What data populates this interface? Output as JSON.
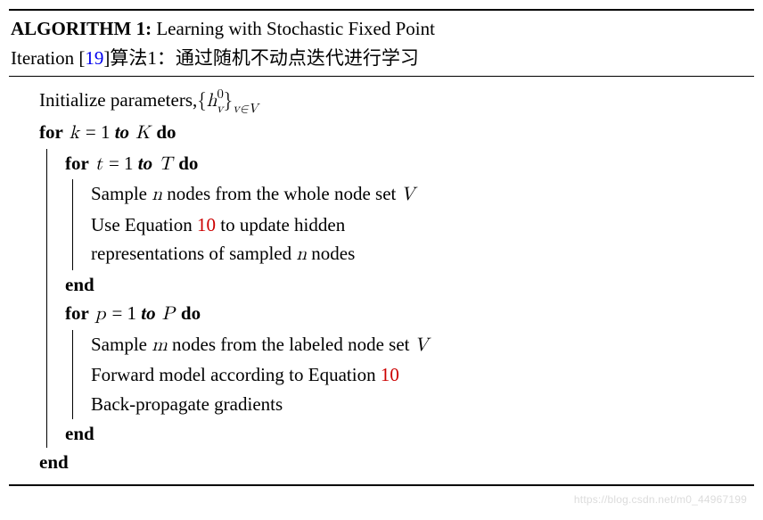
{
  "title": {
    "algorithm_label": "ALGORITHM 1:",
    "en_part1": " Learning with Stochastic Fixed Point",
    "en_part2": "Iteration [",
    "ref_num": "19",
    "en_part3": "]",
    "cn": "算法1：通过随机不动点迭代进行学习"
  },
  "body": {
    "init_a": "Initialize parameters,",
    "init_math_open": "{",
    "init_math_h": "h",
    "init_math_sup": "0",
    "init_math_sub": "v",
    "init_math_close": "}",
    "init_math_subset": "v∈V",
    "for_k_a": "for",
    "for_k_b": " k ",
    "for_k_c": "= 1 ",
    "for_k_d": "to",
    "for_k_e": " K ",
    "for_k_f": "do",
    "for_t_a": "for",
    "for_t_b": " t ",
    "for_t_c": "= 1 ",
    "for_t_d": "to",
    "for_t_e": " T ",
    "for_t_f": "do",
    "t_l1_a": "Sample ",
    "t_l1_b": "n",
    "t_l1_c": " nodes from the whole node set ",
    "t_l1_d": "V",
    "t_l2_a": "Use Equation ",
    "t_l2_ref": "10",
    "t_l2_b": " to update hidden",
    "t_l3": "representations of sampled ",
    "t_l3_b": "n",
    "t_l3_c": " nodes",
    "end_t": "end",
    "for_p_a": "for",
    "for_p_b": " p ",
    "for_p_c": "= 1 ",
    "for_p_d": "to",
    "for_p_e": " P ",
    "for_p_f": "do",
    "p_l1_a": "Sample ",
    "p_l1_b": "m",
    "p_l1_c": " nodes from the labeled node set ",
    "p_l1_d": "V",
    "p_l2_a": "Forward model according to Equation ",
    "p_l2_ref": "10",
    "p_l3": "Back-propagate gradients",
    "end_p": "end",
    "end_k": "end"
  },
  "colors": {
    "ref_blue": "#0000ee",
    "ref_red": "#cc0000",
    "text": "#000000",
    "background": "#ffffff",
    "watermark": "#dcdcdc"
  },
  "watermark": "https://blog.csdn.net/m0_44967199"
}
